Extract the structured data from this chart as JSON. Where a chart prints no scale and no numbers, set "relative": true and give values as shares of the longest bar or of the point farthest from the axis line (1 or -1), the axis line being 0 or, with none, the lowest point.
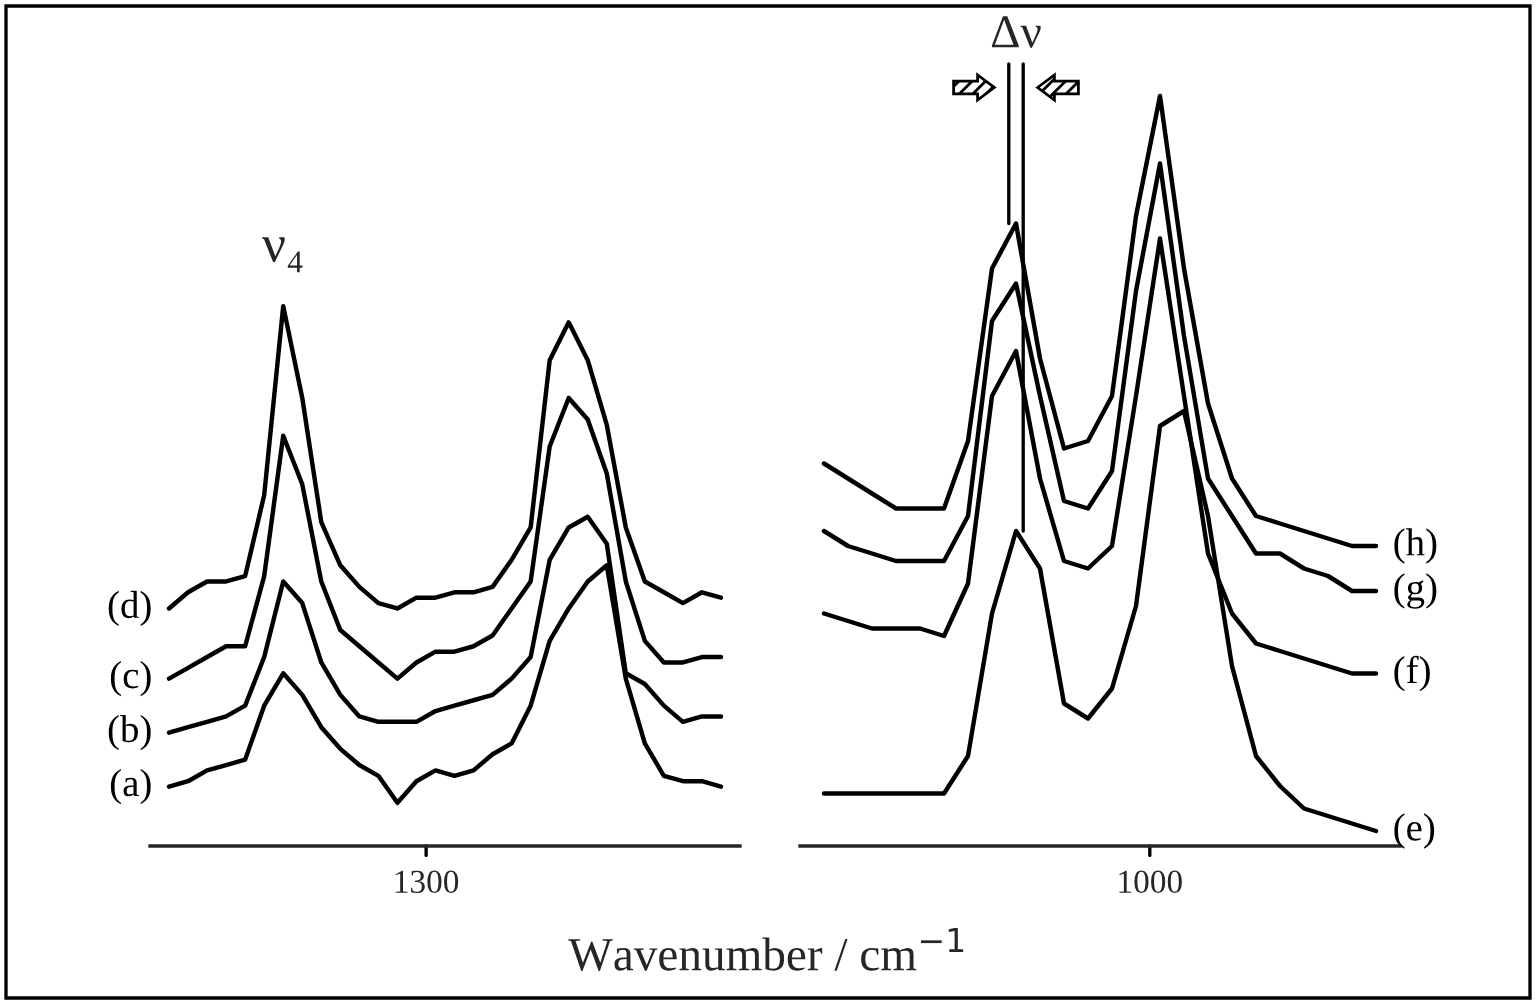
{
  "chart_data": [
    {
      "type": "line",
      "relative": true,
      "xlabel": "Wavenumber / cm$^{−1}$",
      "annotations": [
        "ν₄",
        "1300"
      ],
      "grid": false,
      "legend": false,
      "marker": "none",
      "line_style": "solid",
      "categories": [
        null,
        null,
        null,
        null,
        null,
        null,
        null,
        null,
        null,
        null,
        null,
        null,
        null,
        null,
        null,
        null,
        null,
        null,
        null,
        null,
        null,
        null,
        null,
        null,
        null,
        null,
        null,
        null,
        null,
        null
      ],
      "series": [
        {
          "name": "(d)",
          "color": "#000000",
          "values": [
            0.44,
            0.47,
            0.49,
            0.49,
            0.5,
            0.65,
            1.0,
            0.83,
            0.6,
            0.52,
            0.48,
            0.45,
            0.44,
            0.46,
            0.46,
            0.47,
            0.47,
            0.48,
            0.53,
            0.59,
            0.9,
            0.97,
            0.9,
            0.78,
            0.59,
            0.49,
            0.47,
            0.45,
            0.47,
            0.46
          ]
        },
        {
          "name": "(c)",
          "color": "#000000",
          "values": [
            0.31,
            0.33,
            0.35,
            0.37,
            0.37,
            0.5,
            0.76,
            0.67,
            0.49,
            0.4,
            0.37,
            0.34,
            0.31,
            0.34,
            0.36,
            0.36,
            0.37,
            0.39,
            0.44,
            0.49,
            0.74,
            0.83,
            0.79,
            0.69,
            0.49,
            0.38,
            0.34,
            0.34,
            0.35,
            0.35
          ]
        },
        {
          "name": "(b)",
          "color": "#000000",
          "values": [
            0.21,
            0.22,
            0.23,
            0.24,
            0.26,
            0.35,
            0.49,
            0.45,
            0.34,
            0.28,
            0.24,
            0.23,
            0.23,
            0.23,
            0.25,
            0.26,
            0.27,
            0.28,
            0.31,
            0.35,
            0.53,
            0.59,
            0.61,
            0.56,
            0.32,
            0.3,
            0.26,
            0.23,
            0.24,
            0.24
          ]
        },
        {
          "name": "(a)",
          "color": "#000000",
          "values": [
            0.11,
            0.12,
            0.14,
            0.15,
            0.16,
            0.26,
            0.32,
            0.28,
            0.22,
            0.18,
            0.15,
            0.13,
            0.08,
            0.12,
            0.14,
            0.13,
            0.14,
            0.17,
            0.19,
            0.26,
            0.38,
            0.44,
            0.49,
            0.52,
            0.31,
            0.19,
            0.13,
            0.12,
            0.12,
            0.11
          ]
        }
      ]
    },
    {
      "type": "line",
      "relative": true,
      "annotations": [
        "Δν",
        "1000"
      ],
      "grid": false,
      "legend": false,
      "marker": "none",
      "line_style": "solid",
      "categories": [
        null,
        null,
        null,
        null,
        null,
        null,
        null,
        null,
        null,
        null,
        null,
        null,
        null,
        null,
        null,
        null,
        null,
        null,
        null,
        null,
        null,
        null,
        null,
        null
      ],
      "series": [
        {
          "name": "(h)",
          "color": "#000000",
          "values": [
            0.51,
            0.49,
            0.47,
            0.45,
            0.45,
            0.45,
            0.54,
            0.77,
            0.83,
            0.65,
            0.53,
            0.54,
            0.6,
            0.84,
            1.0,
            0.77,
            0.59,
            0.49,
            0.44,
            0.43,
            0.42,
            0.41,
            0.4,
            0.4
          ]
        },
        {
          "name": "(g)",
          "color": "#000000",
          "values": [
            0.42,
            0.4,
            0.39,
            0.38,
            0.38,
            0.38,
            0.44,
            0.7,
            0.75,
            0.6,
            0.46,
            0.45,
            0.5,
            0.74,
            0.91,
            0.68,
            0.49,
            0.44,
            0.39,
            0.39,
            0.37,
            0.36,
            0.34,
            0.34
          ]
        },
        {
          "name": "(f)",
          "color": "#000000",
          "values": [
            0.31,
            0.3,
            0.29,
            0.29,
            0.29,
            0.28,
            0.35,
            0.6,
            0.66,
            0.49,
            0.38,
            0.37,
            0.4,
            0.6,
            0.81,
            0.6,
            0.39,
            0.31,
            0.27,
            0.26,
            0.25,
            0.24,
            0.23,
            0.23
          ]
        },
        {
          "name": "(e)",
          "color": "#000000",
          "values": [
            0.07,
            0.07,
            0.07,
            0.07,
            0.07,
            0.07,
            0.12,
            0.31,
            0.42,
            0.37,
            0.19,
            0.17,
            0.21,
            0.32,
            0.56,
            0.58,
            0.44,
            0.24,
            0.12,
            0.08,
            0.05,
            0.04,
            0.03,
            0.02
          ]
        }
      ]
    }
  ]
}
